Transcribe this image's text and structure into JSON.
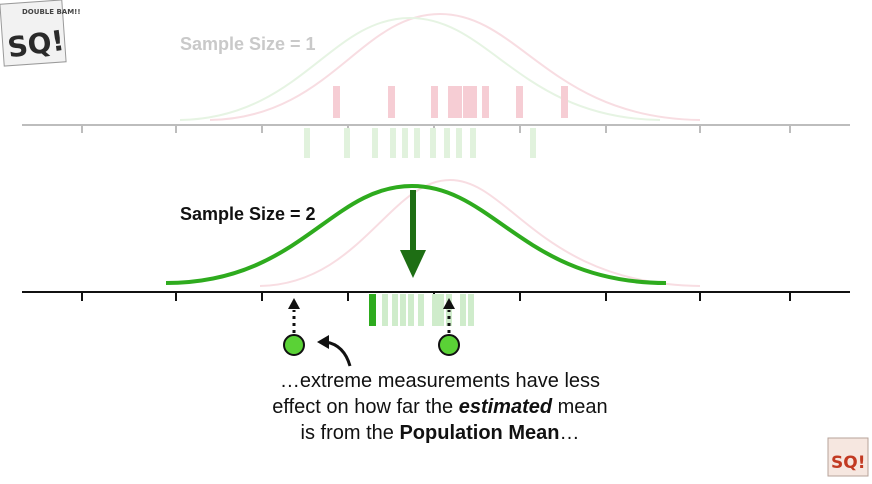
{
  "labels": {
    "sample_size_1": "Sample Size = 1",
    "sample_size_2": "Sample Size = 2"
  },
  "caption": {
    "line1": "…extreme measurements have less",
    "line2_pre": "effect on how far the ",
    "line2_em": "estimated",
    "line2_post": " mean",
    "line3_pre": "is from the ",
    "line3_strong": "Population Mean",
    "line3_post": "…"
  },
  "logo": {
    "text": "SQ!",
    "sub": "DOUBLE BAM!!"
  },
  "colors": {
    "green": "#2eab1e",
    "dark_green": "#1e6e14",
    "faint_green": "#cfeccb",
    "faint_red": "#f6cdd4",
    "axis": "#111111",
    "faint_axis": "#bdbdbd",
    "dot": "#5ad236"
  }
}
